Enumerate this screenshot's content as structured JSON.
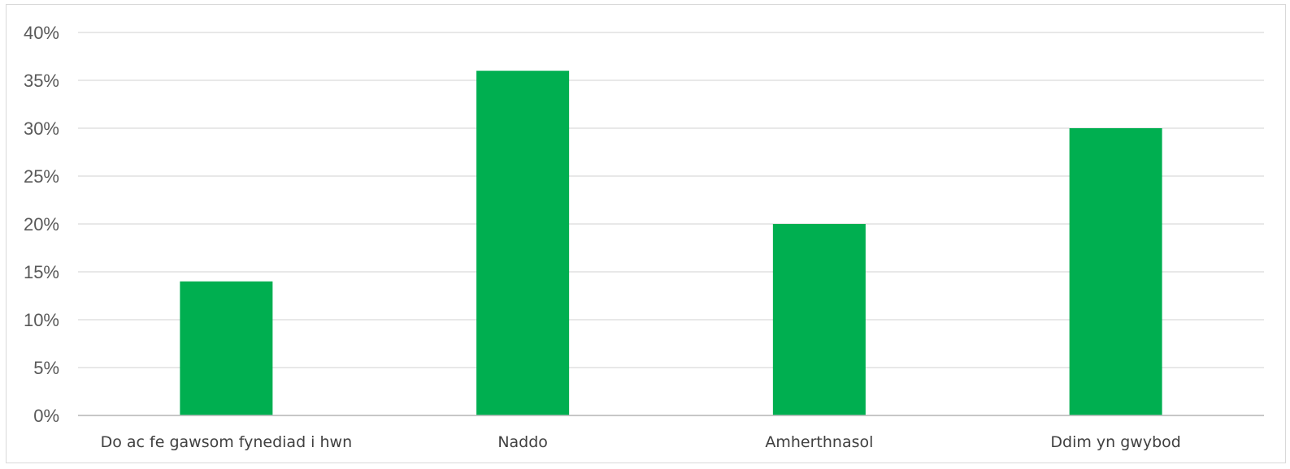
{
  "chart_data": {
    "type": "bar",
    "categories": [
      "Do ac fe gawsom fynediad i hwn",
      "Naddo",
      "Amherthnasol",
      "Ddim yn gwybod"
    ],
    "values": [
      14,
      36,
      20,
      30
    ],
    "ylim": [
      0,
      40
    ],
    "yticks": [
      0,
      5,
      10,
      15,
      20,
      25,
      30,
      35,
      40
    ],
    "ytick_labels": [
      "0%",
      "5%",
      "10%",
      "15%",
      "20%",
      "25%",
      "30%",
      "35%",
      "40%"
    ],
    "title": "",
    "xlabel": "",
    "ylabel": "",
    "grid": true,
    "legend": "none",
    "bar_color": "#00AF50",
    "gridline_color": "#D9D9D9",
    "axis_line_color": "#BFBFBF"
  }
}
